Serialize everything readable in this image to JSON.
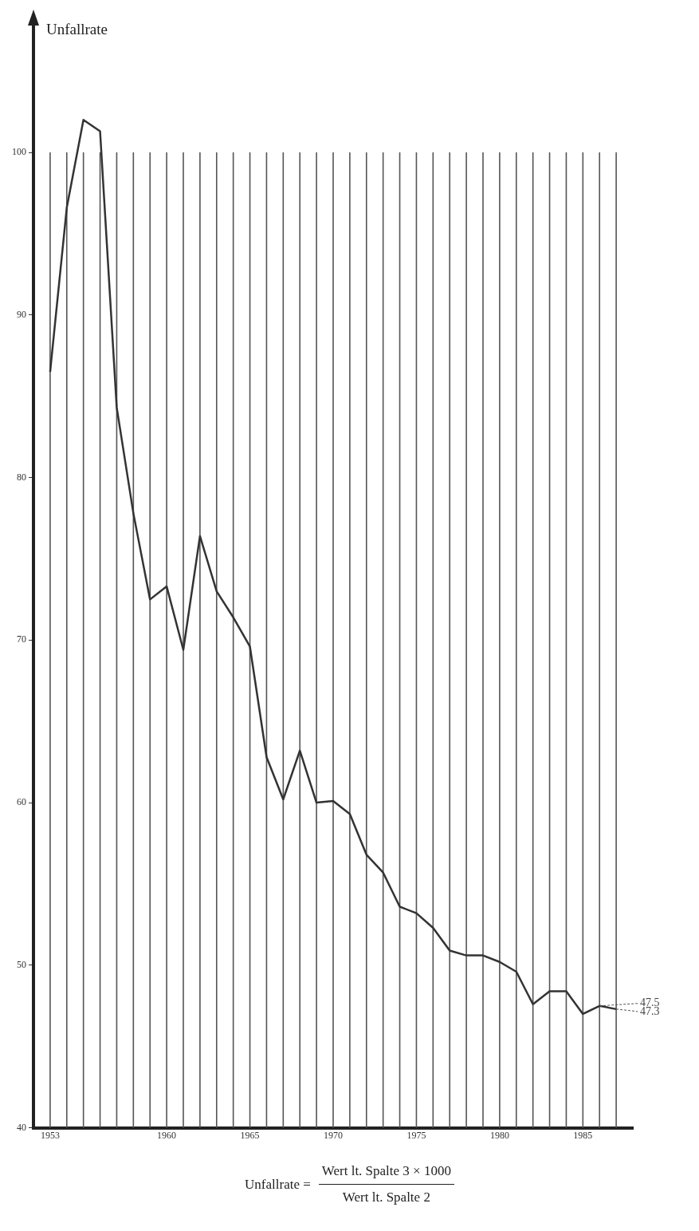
{
  "chart_data": {
    "type": "line",
    "ylabel": "Unfallrate",
    "x": [
      1953,
      1954,
      1955,
      1956,
      1957,
      1958,
      1959,
      1960,
      1961,
      1962,
      1963,
      1964,
      1965,
      1966,
      1967,
      1968,
      1969,
      1970,
      1971,
      1972,
      1973,
      1974,
      1975,
      1976,
      1977,
      1978,
      1979,
      1980,
      1981,
      1982,
      1983,
      1984,
      1985,
      1986,
      1987
    ],
    "series": [
      {
        "color": "#333333",
        "values": [
          86.5,
          96.6,
          102.0,
          101.3,
          84.3,
          77.8,
          72.5,
          73.3,
          69.4,
          76.4,
          73.0,
          71.4,
          69.6,
          62.8,
          60.2,
          63.2,
          60.0,
          60.1,
          59.3,
          56.8,
          55.7,
          53.6,
          53.2,
          52.3,
          50.9,
          50.6,
          50.6,
          50.2,
          49.6,
          47.6,
          48.4,
          48.4,
          47.0,
          47.5,
          47.3
        ],
        "value_labels": [
          null,
          null,
          null,
          null,
          null,
          null,
          null,
          null,
          null,
          null,
          null,
          null,
          null,
          null,
          null,
          null,
          null,
          null,
          null,
          null,
          null,
          null,
          null,
          null,
          null,
          null,
          null,
          null,
          null,
          null,
          null,
          null,
          null,
          "47.5",
          "47.3"
        ]
      }
    ],
    "xlim": [
      1952,
      1988
    ],
    "ylim": [
      40,
      108
    ],
    "xticks": [
      1953,
      {
        "value": 1954,
        "label": null
      },
      {
        "value": 1955,
        "label": null
      },
      {
        "value": 1956,
        "label": null
      },
      {
        "value": 1957,
        "label": null
      },
      {
        "value": 1958,
        "label": null
      },
      {
        "value": 1959,
        "label": null
      },
      1960,
      {
        "value": 1961,
        "label": null
      },
      {
        "value": 1962,
        "label": null
      },
      {
        "value": 1963,
        "label": null
      },
      {
        "value": 1964,
        "label": null
      },
      1965,
      {
        "value": 1966,
        "label": null
      },
      {
        "value": 1967,
        "label": null
      },
      {
        "value": 1968,
        "label": null
      },
      {
        "value": 1969,
        "label": null
      },
      1970,
      {
        "value": 1971,
        "label": null
      },
      {
        "value": 1972,
        "label": null
      },
      {
        "value": 1973,
        "label": null
      },
      {
        "value": 1974,
        "label": null
      },
      1975,
      {
        "value": 1976,
        "label": null
      },
      {
        "value": 1977,
        "label": null
      },
      {
        "value": 1978,
        "label": null
      },
      {
        "value": 1979,
        "label": null
      },
      1980,
      {
        "value": 1981,
        "label": null
      },
      {
        "value": 1982,
        "label": null
      },
      {
        "value": 1983,
        "label": null
      },
      {
        "value": 1984,
        "label": null
      },
      1985,
      {
        "value": 1986,
        "label": null
      },
      {
        "value": 1987,
        "label": null
      }
    ],
    "yticks": [
      40,
      50,
      60,
      70,
      80,
      90,
      100
    ],
    "grid": "x",
    "legend": false,
    "marker": "none",
    "line_style": "solid",
    "annotations": [
      "Unfallrate =",
      "Wert lt. Spalte 3 × 1000",
      "Wert lt. Spalte 2"
    ]
  }
}
